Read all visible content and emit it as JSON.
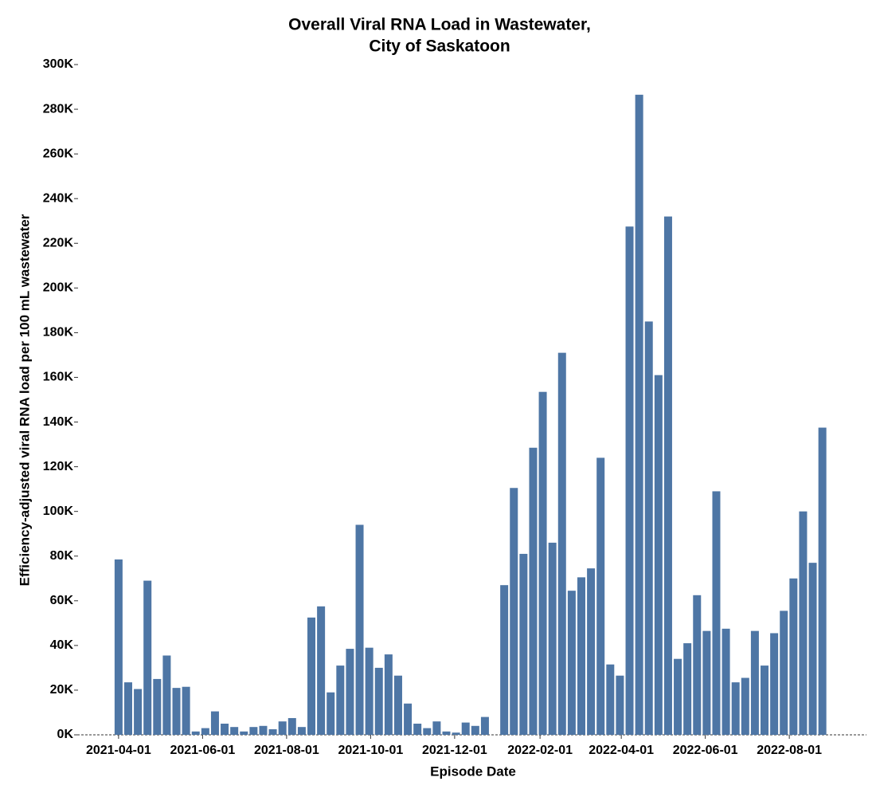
{
  "chart_data": {
    "type": "bar",
    "title": [
      "Overall Viral RNA Load in Wastewater,",
      "City of Saskatoon"
    ],
    "x_label": "Episode Date",
    "y_label": "Efficiency-adjusted viral RNA load per 100 mL wastewater",
    "color": "#4e76a5",
    "x": [
      "2021-04-01",
      "2021-04-08",
      "2021-04-15",
      "2021-04-22",
      "2021-04-29",
      "2021-05-06",
      "2021-05-13",
      "2021-05-20",
      "2021-05-27",
      "2021-06-03",
      "2021-06-10",
      "2021-06-17",
      "2021-06-24",
      "2021-07-01",
      "2021-07-08",
      "2021-07-15",
      "2021-07-22",
      "2021-07-29",
      "2021-08-05",
      "2021-08-12",
      "2021-08-19",
      "2021-08-26",
      "2021-09-02",
      "2021-09-09",
      "2021-09-16",
      "2021-09-23",
      "2021-09-30",
      "2021-10-07",
      "2021-10-14",
      "2021-10-21",
      "2021-10-28",
      "2021-11-04",
      "2021-11-11",
      "2021-11-18",
      "2021-11-25",
      "2021-12-02",
      "2021-12-09",
      "2021-12-16",
      "2021-12-23",
      "2021-12-30",
      "2022-01-06",
      "2022-01-13",
      "2022-01-20",
      "2022-01-27",
      "2022-02-03",
      "2022-02-10",
      "2022-02-17",
      "2022-02-24",
      "2022-03-03",
      "2022-03-10",
      "2022-03-17",
      "2022-03-24",
      "2022-03-31",
      "2022-04-07",
      "2022-04-14",
      "2022-04-21",
      "2022-04-28",
      "2022-05-05",
      "2022-05-12",
      "2022-05-19",
      "2022-05-26",
      "2022-06-02",
      "2022-06-09",
      "2022-06-16",
      "2022-06-23",
      "2022-06-30",
      "2022-07-07",
      "2022-07-14",
      "2022-07-21",
      "2022-07-28",
      "2022-08-04",
      "2022-08-11",
      "2022-08-18",
      "2022-08-25"
    ],
    "values": [
      78500,
      23500,
      20500,
      69000,
      25000,
      35500,
      21000,
      21500,
      1500,
      3000,
      10500,
      5000,
      3500,
      1500,
      3500,
      4000,
      2500,
      6000,
      7500,
      3500,
      52500,
      57500,
      19000,
      31000,
      38500,
      94000,
      39000,
      30000,
      36000,
      26500,
      14000,
      5000,
      3000,
      6000,
      1500,
      1000,
      5500,
      4000,
      8000,
      null,
      67000,
      110500,
      81000,
      128500,
      153500,
      86000,
      171000,
      64500,
      70500,
      74500,
      124000,
      31500,
      26500,
      227500,
      286500,
      185000,
      161000,
      232000,
      34000,
      41000,
      62500,
      46500,
      109000,
      47500,
      23500,
      25500,
      46500,
      31000,
      45500,
      55500,
      70000,
      100000,
      77000,
      137500
    ],
    "xlim": [
      "2021-03-02",
      "2022-09-26"
    ],
    "xticks": [
      "2021-04-01",
      "2021-06-01",
      "2021-08-01",
      "2021-10-01",
      "2021-12-01",
      "2022-02-01",
      "2022-04-01",
      "2022-06-01",
      "2022-08-01"
    ],
    "ylim": [
      0,
      300000
    ],
    "yticks": [
      {
        "value": 0,
        "label": "0K"
      },
      {
        "value": 20000,
        "label": "20K"
      },
      {
        "value": 40000,
        "label": "40K"
      },
      {
        "value": 60000,
        "label": "60K"
      },
      {
        "value": 80000,
        "label": "80K"
      },
      {
        "value": 100000,
        "label": "100K"
      },
      {
        "value": 120000,
        "label": "120K"
      },
      {
        "value": 140000,
        "label": "140K"
      },
      {
        "value": 160000,
        "label": "160K"
      },
      {
        "value": 180000,
        "label": "180K"
      },
      {
        "value": 200000,
        "label": "200K"
      },
      {
        "value": 220000,
        "label": "220K"
      },
      {
        "value": 240000,
        "label": "240K"
      },
      {
        "value": 260000,
        "label": "260K"
      },
      {
        "value": 280000,
        "label": "280K"
      },
      {
        "value": 300000,
        "label": "300K"
      }
    ],
    "grid": false
  }
}
